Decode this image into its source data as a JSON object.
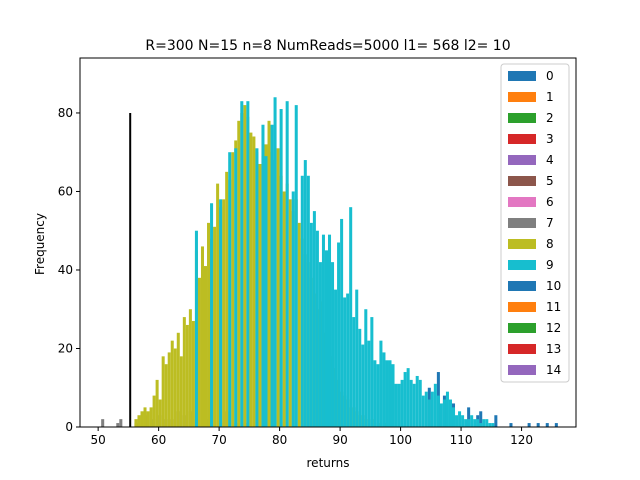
{
  "chart_data": {
    "type": "bar",
    "title": "R=300 N=15 n=8 NumReads=5000 l1= 568 l2= 10",
    "xlabel": "returns",
    "ylabel": "Frequency",
    "xlim": [
      47,
      129
    ],
    "ylim": [
      0,
      94
    ],
    "xticks": [
      50,
      60,
      70,
      80,
      90,
      100,
      110,
      120
    ],
    "yticks": [
      0,
      20,
      40,
      60,
      80
    ],
    "legend_position": "top-right",
    "vline": {
      "x": 55.3,
      "y0": 0,
      "y1": 80,
      "color": "#000000"
    },
    "series": [
      {
        "name": "0",
        "color": "#1f77b4",
        "bins": [
          [
            104.5,
            10
          ],
          [
            106.0,
            14
          ],
          [
            107.0,
            8
          ],
          [
            108.5,
            6
          ],
          [
            111.0,
            5
          ],
          [
            112.5,
            3
          ],
          [
            113.0,
            4
          ],
          [
            115.5,
            3
          ],
          [
            118.0,
            1
          ],
          [
            121.0,
            1
          ],
          [
            122.5,
            1
          ],
          [
            124.0,
            1
          ],
          [
            125.5,
            1
          ]
        ]
      },
      {
        "name": "1",
        "color": "#ff7f0e",
        "bins": []
      },
      {
        "name": "2",
        "color": "#2ca02c",
        "bins": []
      },
      {
        "name": "3",
        "color": "#d62728",
        "bins": []
      },
      {
        "name": "4",
        "color": "#9467bd",
        "bins": []
      },
      {
        "name": "5",
        "color": "#8c564b",
        "bins": []
      },
      {
        "name": "6",
        "color": "#e377c2",
        "bins": []
      },
      {
        "name": "7",
        "color": "#7f7f7f",
        "bins": [
          [
            50.5,
            2
          ],
          [
            53.0,
            1
          ],
          [
            53.5,
            2
          ],
          [
            56.0,
            1
          ],
          [
            57.0,
            2
          ],
          [
            58.0,
            3
          ],
          [
            59.0,
            2
          ],
          [
            60.0,
            3
          ],
          [
            61.0,
            2
          ],
          [
            62.0,
            2
          ],
          [
            63.0,
            4
          ],
          [
            64.0,
            3
          ],
          [
            65.0,
            4
          ],
          [
            66.0,
            2
          ],
          [
            67.0,
            1
          ],
          [
            68.0,
            2
          ],
          [
            70.0,
            1
          ],
          [
            71.0,
            4
          ],
          [
            72.5,
            1
          ],
          [
            74.0,
            1
          ]
        ]
      },
      {
        "name": "8",
        "color": "#bcbd22",
        "bins": [
          [
            56.0,
            2
          ],
          [
            56.5,
            3
          ],
          [
            57.0,
            4
          ],
          [
            57.5,
            5
          ],
          [
            58.0,
            4
          ],
          [
            58.5,
            5
          ],
          [
            59.0,
            8
          ],
          [
            59.5,
            12
          ],
          [
            60.0,
            7
          ],
          [
            60.5,
            18
          ],
          [
            61.0,
            16
          ],
          [
            61.5,
            19
          ],
          [
            62.0,
            22
          ],
          [
            62.5,
            20
          ],
          [
            63.0,
            24
          ],
          [
            63.5,
            18
          ],
          [
            64.0,
            28
          ],
          [
            64.5,
            26
          ],
          [
            65.0,
            30
          ],
          [
            65.5,
            27
          ],
          [
            66.0,
            45
          ],
          [
            66.5,
            38
          ],
          [
            67.0,
            46
          ],
          [
            67.5,
            41
          ],
          [
            68.0,
            52
          ],
          [
            68.5,
            48
          ],
          [
            69.0,
            51
          ],
          [
            69.5,
            62
          ],
          [
            70.0,
            56
          ],
          [
            70.5,
            58
          ],
          [
            71.0,
            65
          ],
          [
            71.5,
            63
          ],
          [
            72.0,
            70
          ],
          [
            72.5,
            73
          ],
          [
            73.0,
            78
          ],
          [
            73.5,
            80
          ],
          [
            74.0,
            82
          ],
          [
            74.5,
            79
          ],
          [
            75.0,
            75
          ],
          [
            75.5,
            74
          ],
          [
            76.0,
            70
          ],
          [
            76.5,
            67
          ],
          [
            77.0,
            69
          ],
          [
            77.5,
            72
          ],
          [
            78.0,
            78
          ],
          [
            78.5,
            70
          ],
          [
            79.0,
            68
          ],
          [
            79.5,
            71
          ],
          [
            80.0,
            64
          ],
          [
            80.5,
            60
          ],
          [
            81.0,
            62
          ],
          [
            81.5,
            58
          ],
          [
            82.0,
            55
          ],
          [
            82.5,
            58
          ],
          [
            83.0,
            52
          ],
          [
            83.5,
            48
          ],
          [
            84.0,
            44
          ],
          [
            84.5,
            42
          ],
          [
            85.0,
            38
          ],
          [
            85.5,
            34
          ],
          [
            86.0,
            30
          ],
          [
            86.5,
            32
          ],
          [
            87.0,
            24
          ],
          [
            87.5,
            21
          ],
          [
            88.0,
            22
          ],
          [
            88.5,
            18
          ],
          [
            89.0,
            15
          ],
          [
            89.5,
            12
          ],
          [
            90.0,
            9
          ],
          [
            90.5,
            8
          ],
          [
            91.0,
            7
          ],
          [
            91.5,
            5
          ],
          [
            92.0,
            5
          ],
          [
            92.5,
            4
          ],
          [
            93.0,
            3
          ],
          [
            93.5,
            3
          ],
          [
            94.0,
            2
          ],
          [
            95.0,
            2
          ],
          [
            96.0,
            1
          ],
          [
            97.0,
            1
          ]
        ]
      },
      {
        "name": "9",
        "color": "#17becf",
        "bins": [
          [
            66.0,
            50
          ],
          [
            68.5,
            57
          ],
          [
            70.0,
            58
          ],
          [
            71.5,
            70
          ],
          [
            72.5,
            71
          ],
          [
            73.5,
            83
          ],
          [
            74.5,
            83
          ],
          [
            76.0,
            71
          ],
          [
            77.0,
            77
          ],
          [
            77.5,
            69
          ],
          [
            78.5,
            77
          ],
          [
            79.0,
            84
          ],
          [
            80.0,
            81
          ],
          [
            81.0,
            83
          ],
          [
            82.0,
            60
          ],
          [
            82.5,
            82
          ],
          [
            83.5,
            64
          ],
          [
            84.0,
            68
          ],
          [
            84.5,
            64
          ],
          [
            85.0,
            52
          ],
          [
            85.5,
            55
          ],
          [
            86.0,
            50
          ],
          [
            86.5,
            42
          ],
          [
            87.0,
            49
          ],
          [
            87.5,
            45
          ],
          [
            88.0,
            49
          ],
          [
            88.5,
            42
          ],
          [
            89.0,
            35
          ],
          [
            89.5,
            47
          ],
          [
            90.0,
            53
          ],
          [
            90.5,
            33
          ],
          [
            91.0,
            34
          ],
          [
            91.5,
            56
          ],
          [
            92.0,
            28
          ],
          [
            92.5,
            35
          ],
          [
            93.0,
            25
          ],
          [
            93.5,
            21
          ],
          [
            94.0,
            30
          ],
          [
            94.5,
            22
          ],
          [
            95.0,
            28
          ],
          [
            95.5,
            17
          ],
          [
            96.0,
            16
          ],
          [
            96.5,
            22
          ],
          [
            97.0,
            19
          ],
          [
            97.5,
            17
          ],
          [
            98.0,
            17
          ],
          [
            98.5,
            16
          ],
          [
            99.0,
            11
          ],
          [
            99.5,
            11
          ],
          [
            100.0,
            12
          ],
          [
            100.5,
            14
          ],
          [
            101.0,
            15
          ],
          [
            101.5,
            12
          ],
          [
            102.0,
            11
          ],
          [
            102.5,
            13
          ],
          [
            103.0,
            12
          ],
          [
            103.5,
            8
          ],
          [
            104.0,
            9
          ],
          [
            104.5,
            7
          ],
          [
            105.0,
            9
          ],
          [
            105.5,
            11
          ],
          [
            106.0,
            8
          ],
          [
            106.5,
            6
          ],
          [
            107.0,
            7
          ],
          [
            107.5,
            9
          ],
          [
            108.0,
            7
          ],
          [
            108.5,
            5
          ],
          [
            109.0,
            3
          ],
          [
            109.5,
            4
          ],
          [
            110.0,
            3
          ],
          [
            110.5,
            2
          ],
          [
            111.0,
            2
          ],
          [
            111.5,
            3
          ],
          [
            112.0,
            2
          ],
          [
            112.5,
            2
          ],
          [
            113.0,
            1
          ],
          [
            113.5,
            2
          ],
          [
            114.0,
            2
          ],
          [
            114.5,
            1
          ],
          [
            115.0,
            1
          ]
        ]
      },
      {
        "name": "10",
        "color": "#1f77b4",
        "bins": []
      },
      {
        "name": "11",
        "color": "#ff7f0e",
        "bins": []
      },
      {
        "name": "12",
        "color": "#2ca02c",
        "bins": []
      },
      {
        "name": "13",
        "color": "#d62728",
        "bins": []
      },
      {
        "name": "14",
        "color": "#9467bd",
        "bins": []
      }
    ]
  }
}
